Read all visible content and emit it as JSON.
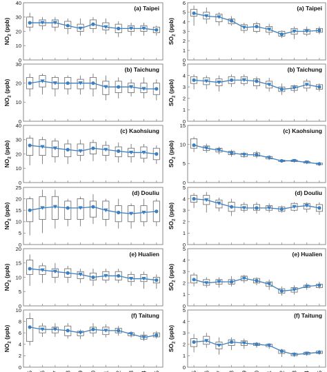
{
  "figure": {
    "years": [
      "2005",
      "2006",
      "2007",
      "2008",
      "2009",
      "2010",
      "2011",
      "2012",
      "2013",
      "2014",
      "2015"
    ],
    "colors": {
      "line": "#3a7fc1",
      "box": "#666666",
      "frame": "#888888",
      "text": "#111111"
    }
  },
  "chart_data": [
    {
      "type": "box",
      "title": "(a) Taipei",
      "ylabel": "NO2 (ppb)",
      "ylabel_sub": "2",
      "ylim": [
        0,
        40
      ],
      "yticks": [
        0,
        10,
        20,
        30,
        40
      ],
      "x": [
        "2005",
        "2006",
        "2007",
        "2008",
        "2009",
        "2010",
        "2011",
        "2012",
        "2013",
        "2014",
        "2015"
      ],
      "mean": [
        26,
        26,
        26,
        24,
        22,
        25,
        23,
        22,
        22,
        22,
        21
      ],
      "q1": [
        23,
        24,
        23,
        22,
        20,
        22,
        21,
        19,
        20,
        20,
        19
      ],
      "q3": [
        30,
        28,
        28,
        27,
        25,
        28,
        26,
        25,
        24,
        24,
        23
      ],
      "min": [
        20,
        21,
        20,
        18,
        17,
        19,
        18,
        16,
        17,
        17,
        17
      ],
      "max": [
        33,
        30,
        30,
        29,
        29,
        30,
        29,
        27,
        26,
        26,
        24
      ]
    },
    {
      "type": "box",
      "title": "(a) Taipei",
      "ylabel": "SO2 (ppb)",
      "ylabel_sub": "2",
      "ylim": [
        0,
        6
      ],
      "yticks": [
        0,
        1,
        2,
        3,
        4,
        5,
        6
      ],
      "x": [
        "2005",
        "2006",
        "2007",
        "2008",
        "2009",
        "2010",
        "2011",
        "2012",
        "2013",
        "2014",
        "2015"
      ],
      "mean": [
        4.9,
        4.6,
        4.5,
        4.1,
        3.4,
        3.5,
        3.2,
        2.7,
        3.0,
        3.0,
        3.1
      ],
      "q1": [
        4.6,
        4.3,
        4.0,
        3.8,
        3.1,
        3.0,
        2.9,
        2.5,
        2.7,
        2.7,
        2.9
      ],
      "q3": [
        5.3,
        5.0,
        4.8,
        4.3,
        3.7,
        3.8,
        3.5,
        3.0,
        3.3,
        3.2,
        3.3
      ],
      "min": [
        3.6,
        3.8,
        3.6,
        3.6,
        2.8,
        2.8,
        2.6,
        2.3,
        2.2,
        2.5,
        2.7
      ],
      "max": [
        5.7,
        5.5,
        5.0,
        4.6,
        3.9,
        4.0,
        3.8,
        3.1,
        3.5,
        3.5,
        3.5
      ]
    },
    {
      "type": "box",
      "title": "(b) Taichung",
      "ylabel": "NO2 (ppb)",
      "ylabel_sub": "2",
      "ylim": [
        0,
        30
      ],
      "yticks": [
        0,
        10,
        20,
        30
      ],
      "x": [
        "2005",
        "2006",
        "2007",
        "2008",
        "2009",
        "2010",
        "2011",
        "2012",
        "2013",
        "2014",
        "2015"
      ],
      "mean": [
        20,
        21,
        20,
        20,
        20,
        20,
        18,
        18,
        18,
        17,
        17
      ],
      "q1": [
        17,
        18,
        17,
        17,
        17,
        17,
        14,
        15,
        15,
        15,
        14
      ],
      "q3": [
        23,
        24,
        23,
        23,
        22,
        23,
        21,
        21,
        20,
        20,
        20
      ],
      "min": [
        13,
        14,
        13,
        14,
        14,
        13,
        11,
        12,
        13,
        12,
        11
      ],
      "max": [
        25,
        25,
        24,
        24,
        24,
        25,
        24,
        23,
        22,
        23,
        22
      ]
    },
    {
      "type": "box",
      "title": "(b) Taichung",
      "ylabel": "SO2 (ppb)",
      "ylabel_sub": "2",
      "ylim": [
        0,
        5
      ],
      "yticks": [
        0,
        1,
        2,
        3,
        4,
        5
      ],
      "x": [
        "2005",
        "2006",
        "2007",
        "2008",
        "2009",
        "2010",
        "2011",
        "2012",
        "2013",
        "2014",
        "2015"
      ],
      "mean": [
        3.6,
        3.5,
        3.4,
        3.6,
        3.6,
        3.5,
        3.2,
        2.8,
        2.9,
        3.2,
        3.0
      ],
      "q1": [
        3.3,
        3.2,
        3.1,
        3.3,
        3.3,
        3.1,
        2.9,
        2.6,
        2.7,
        2.9,
        2.8
      ],
      "q3": [
        3.9,
        3.8,
        3.7,
        3.9,
        3.9,
        3.7,
        3.5,
        3.0,
        3.1,
        3.5,
        3.2
      ],
      "min": [
        2.8,
        2.8,
        2.6,
        3.0,
        3.1,
        2.8,
        2.6,
        2.3,
        2.5,
        2.6,
        2.6
      ],
      "max": [
        4.1,
        4.0,
        4.0,
        4.1,
        4.1,
        3.9,
        3.8,
        3.3,
        3.2,
        3.7,
        3.3
      ]
    },
    {
      "type": "box",
      "title": "(c) Kaohsiung",
      "ylabel": "NO2 (ppb)",
      "ylabel_sub": "2",
      "ylim": [
        0,
        40
      ],
      "yticks": [
        0,
        10,
        20,
        30,
        40
      ],
      "x": [
        "2005",
        "2006",
        "2007",
        "2008",
        "2009",
        "2010",
        "2011",
        "2012",
        "2013",
        "2014",
        "2015"
      ],
      "mean": [
        26,
        25,
        24,
        23,
        22,
        24,
        23,
        22,
        21,
        21,
        20
      ],
      "q1": [
        19,
        19,
        18,
        18,
        19,
        20,
        19,
        18,
        18,
        17,
        16
      ],
      "q3": [
        31,
        30,
        29,
        27,
        27,
        28,
        26,
        25,
        24,
        25,
        24
      ],
      "min": [
        12,
        13,
        14,
        13,
        15,
        15,
        15,
        14,
        14,
        14,
        13
      ],
      "max": [
        33,
        32,
        31,
        30,
        30,
        30,
        29,
        28,
        27,
        27,
        26
      ]
    },
    {
      "type": "box",
      "title": "(c) Kaohsiung",
      "ylabel": "SO2 (ppb)",
      "ylabel_sub": "2",
      "ylim": [
        0,
        15
      ],
      "yticks": [
        0,
        5,
        10,
        15
      ],
      "x": [
        "2005",
        "2006",
        "2007",
        "2008",
        "2009",
        "2010",
        "2011",
        "2012",
        "2013",
        "2014",
        "2015"
      ],
      "mean": [
        9.8,
        9.0,
        8.5,
        7.8,
        7.3,
        7.3,
        6.5,
        5.7,
        5.7,
        5.3,
        4.9
      ],
      "q1": [
        9.0,
        8.4,
        8.0,
        7.3,
        6.8,
        6.9,
        6.2,
        5.5,
        5.5,
        5.1,
        4.7
      ],
      "q3": [
        11.5,
        9.6,
        9.0,
        8.2,
        7.7,
        7.8,
        6.8,
        5.9,
        5.9,
        5.5,
        5.1
      ],
      "min": [
        8.0,
        7.8,
        7.4,
        6.8,
        6.5,
        6.4,
        5.9,
        5.3,
        5.3,
        4.9,
        4.6
      ],
      "max": [
        12.0,
        10.2,
        9.4,
        8.6,
        8.1,
        8.3,
        7.2,
        6.1,
        6.1,
        5.8,
        5.3
      ]
    },
    {
      "type": "box",
      "title": "(d) Douliu",
      "ylabel": "NO2 (ppb)",
      "ylabel_sub": "2",
      "ylim": [
        0,
        25
      ],
      "yticks": [
        0,
        5,
        10,
        15,
        20,
        25
      ],
      "x": [
        "2005",
        "2006",
        "2007",
        "2008",
        "2009",
        "2010",
        "2011",
        "2012",
        "2013",
        "2014",
        "2015"
      ],
      "mean": [
        15,
        16,
        16.5,
        16,
        16,
        16.5,
        15,
        14,
        13.5,
        14,
        14.5
      ],
      "q1": [
        10,
        11,
        11,
        11,
        11,
        12,
        11,
        10,
        10,
        10,
        10
      ],
      "q3": [
        20,
        21,
        21,
        19,
        20,
        19,
        19,
        17,
        17,
        17,
        19
      ],
      "min": [
        4,
        5,
        7,
        8,
        8,
        9,
        8,
        7,
        7,
        8,
        8
      ],
      "max": [
        21,
        24,
        24,
        20,
        21,
        22,
        20,
        20,
        18,
        20,
        20
      ]
    },
    {
      "type": "box",
      "title": "(d) Douliu",
      "ylabel": "SO2 (ppb)",
      "ylabel_sub": "2",
      "ylim": [
        0,
        5
      ],
      "yticks": [
        0,
        1,
        2,
        3,
        4,
        5
      ],
      "x": [
        "2005",
        "2006",
        "2007",
        "2008",
        "2009",
        "2010",
        "2011",
        "2012",
        "2013",
        "2014",
        "2015"
      ],
      "mean": [
        4.0,
        3.9,
        3.6,
        3.3,
        3.2,
        3.2,
        3.2,
        3.1,
        3.3,
        3.4,
        3.2
      ],
      "q1": [
        3.7,
        3.5,
        3.2,
        2.9,
        3.0,
        3.0,
        3.0,
        2.9,
        3.0,
        3.1,
        2.9
      ],
      "q3": [
        4.3,
        4.3,
        3.9,
        3.7,
        3.5,
        3.5,
        3.4,
        3.3,
        3.6,
        3.6,
        3.5
      ],
      "min": [
        3.2,
        2.8,
        2.9,
        2.5,
        2.8,
        2.7,
        2.8,
        2.8,
        2.9,
        2.8,
        2.6
      ],
      "max": [
        4.5,
        4.6,
        4.1,
        4.0,
        3.7,
        3.7,
        3.6,
        3.4,
        3.7,
        3.7,
        3.7
      ]
    },
    {
      "type": "box",
      "title": "(e) Hualien",
      "ylabel": "NO2 (ppb)",
      "ylabel_sub": "2",
      "ylim": [
        0,
        20
      ],
      "yticks": [
        0,
        5,
        10,
        15,
        20
      ],
      "x": [
        "2005",
        "2006",
        "2007",
        "2008",
        "2009",
        "2010",
        "2011",
        "2012",
        "2013",
        "2014",
        "2015"
      ],
      "mean": [
        13,
        12.5,
        12,
        11.5,
        11,
        10,
        10.5,
        10.5,
        9.5,
        9.5,
        9
      ],
      "q1": [
        11,
        11,
        10,
        10,
        9.5,
        9,
        9,
        9,
        8.5,
        8.5,
        8
      ],
      "q3": [
        16,
        14,
        13,
        13,
        12,
        11.5,
        12,
        12,
        11,
        11,
        10
      ],
      "min": [
        7,
        8,
        8,
        8,
        8,
        7,
        8,
        8,
        7,
        6,
        6
      ],
      "max": [
        18,
        15,
        15,
        14,
        13,
        13,
        13,
        13,
        12,
        12,
        11
      ]
    },
    {
      "type": "box",
      "title": "(e) Hualien",
      "ylabel": "SO2 (ppb)",
      "ylabel_sub": "2",
      "ylim": [
        0,
        5
      ],
      "yticks": [
        0,
        1,
        2,
        3,
        4,
        5
      ],
      "x": [
        "2005",
        "2006",
        "2007",
        "2008",
        "2009",
        "2010",
        "2011",
        "2012",
        "2013",
        "2014",
        "2015"
      ],
      "mean": [
        2.3,
        2.0,
        2.1,
        2.1,
        2.4,
        2.2,
        1.9,
        1.3,
        1.4,
        1.7,
        1.8
      ],
      "q1": [
        2.0,
        1.8,
        1.9,
        1.9,
        2.2,
        2.0,
        1.7,
        1.1,
        1.2,
        1.6,
        1.6
      ],
      "q3": [
        2.7,
        2.3,
        2.3,
        2.3,
        2.6,
        2.4,
        2.1,
        1.5,
        1.6,
        1.8,
        1.9
      ],
      "min": [
        1.7,
        1.6,
        1.6,
        1.7,
        2.0,
        1.8,
        1.4,
        0.9,
        1.0,
        1.4,
        1.5
      ],
      "max": [
        2.9,
        2.5,
        2.5,
        2.6,
        2.7,
        2.5,
        2.3,
        1.7,
        1.8,
        2.0,
        2.1
      ]
    },
    {
      "type": "box",
      "title": "(f) Taitung",
      "ylabel": "NO2 (ppb)",
      "ylabel_sub": "2",
      "ylim": [
        0,
        10
      ],
      "yticks": [
        0,
        2,
        4,
        6,
        8,
        10
      ],
      "x": [
        "2005",
        "2006",
        "2007",
        "2008",
        "2009",
        "2010",
        "2011",
        "2012",
        "2013",
        "2014",
        "2015"
      ],
      "mean": [
        7.0,
        6.6,
        6.6,
        6.4,
        6.0,
        6.6,
        6.4,
        6.4,
        5.8,
        5.2,
        5.6
      ],
      "q1": [
        4.5,
        6.0,
        6.0,
        5.5,
        5.5,
        6.0,
        5.7,
        6.0,
        5.5,
        4.9,
        5.3
      ],
      "q3": [
        8.5,
        7.2,
        7.0,
        7.2,
        6.3,
        7.0,
        7.0,
        6.8,
        6.0,
        5.6,
        6.0
      ],
      "min": [
        3.8,
        5.3,
        5.3,
        5.0,
        4.9,
        5.3,
        5.2,
        5.5,
        5.2,
        4.6,
        5.0
      ],
      "max": [
        9.5,
        7.7,
        7.7,
        7.7,
        6.6,
        7.7,
        7.5,
        7.2,
        6.3,
        6.2,
        6.3
      ]
    },
    {
      "type": "box",
      "title": "(f) Taitung",
      "ylabel": "SO2 (ppb)",
      "ylabel_sub": "2",
      "ylim": [
        0,
        5
      ],
      "yticks": [
        0,
        1,
        2,
        3,
        4,
        5
      ],
      "x": [
        "2005",
        "2006",
        "2007",
        "2008",
        "2009",
        "2010",
        "2011",
        "2012",
        "2013",
        "2014",
        "2015"
      ],
      "mean": [
        2.2,
        2.3,
        1.9,
        2.2,
        2.1,
        2.0,
        1.9,
        1.4,
        1.1,
        1.2,
        1.3
      ],
      "q1": [
        1.8,
        2.0,
        1.6,
        1.9,
        1.9,
        1.9,
        1.8,
        1.2,
        1.0,
        1.1,
        1.2
      ],
      "q3": [
        2.5,
        2.7,
        2.2,
        2.4,
        2.3,
        2.1,
        2.0,
        1.5,
        1.2,
        1.3,
        1.4
      ],
      "min": [
        1.3,
        1.7,
        1.1,
        1.5,
        1.6,
        1.7,
        1.6,
        0.9,
        0.9,
        1.0,
        1.1
      ],
      "max": [
        2.9,
        3.0,
        2.6,
        2.6,
        2.5,
        2.2,
        2.1,
        1.6,
        1.3,
        1.3,
        1.5
      ]
    }
  ]
}
